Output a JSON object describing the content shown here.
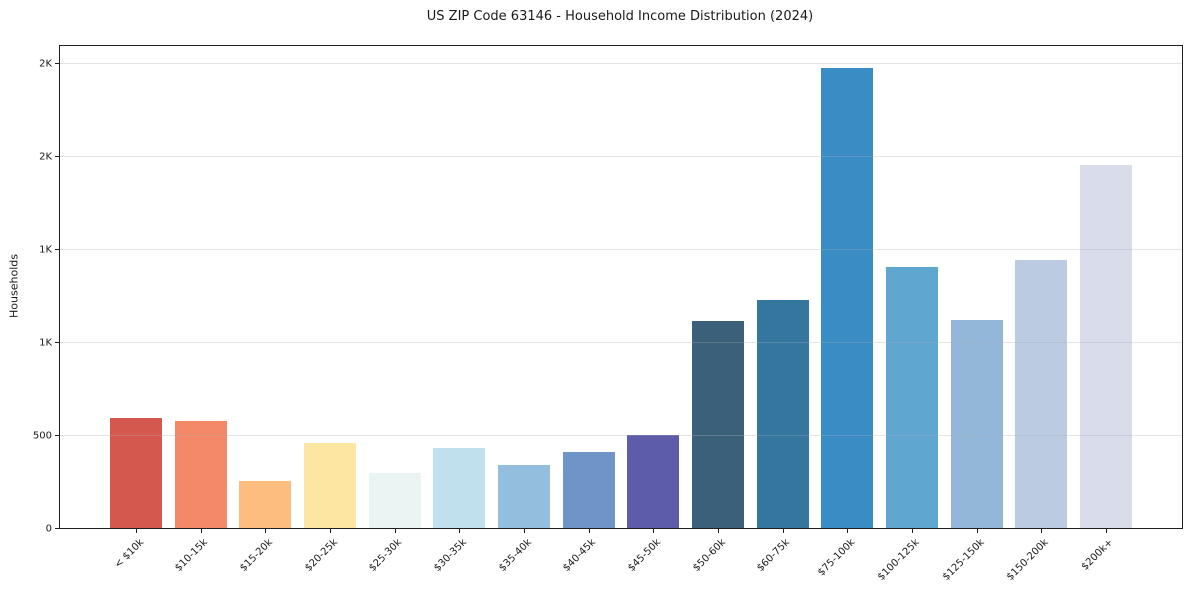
{
  "chart_data": {
    "type": "bar",
    "title": "US ZIP Code 63146 - Household Income Distribution (2024)",
    "xlabel": "",
    "ylabel": "Households",
    "categories": [
      "< $10k",
      "$10-15k",
      "$15-20k",
      "$20-25k",
      "$25-30k",
      "$30-35k",
      "$35-40k",
      "$40-45k",
      "$45-50k",
      "$50-60k",
      "$60-75k",
      "$75-100k",
      "$100-125k",
      "$125-150k",
      "$150-200k",
      "$200k+"
    ],
    "values": [
      590,
      575,
      250,
      455,
      295,
      430,
      340,
      410,
      500,
      1115,
      1225,
      2470,
      1400,
      1120,
      1440,
      1950
    ],
    "bar_colors": [
      "#d5584f",
      "#f4896a",
      "#fcbd7e",
      "#fde5a2",
      "#eaf5f3",
      "#bfe0ec",
      "#94bedd",
      "#6f94c7",
      "#5c5caa",
      "#3b607a",
      "#35769e",
      "#398dc4",
      "#5fa6d1",
      "#92b7d8",
      "#bacbe2",
      "#d9dcea"
    ],
    "ylim": [
      0,
      2590
    ],
    "yticks": [
      {
        "value": 0,
        "label": "0"
      },
      {
        "value": 500,
        "label": "500"
      },
      {
        "value": 1000,
        "label": "1K"
      },
      {
        "value": 1500,
        "label": "1K"
      },
      {
        "value": 2000,
        "label": "2K"
      },
      {
        "value": 2500,
        "label": "2K"
      }
    ],
    "gridline_values": [
      500,
      1000,
      1500,
      2000,
      2500
    ],
    "grid": "horizontal gridlines drawn over bars",
    "legend_position": "none",
    "background_color": "#ffffff",
    "spine_color": "#1f1f1f"
  }
}
